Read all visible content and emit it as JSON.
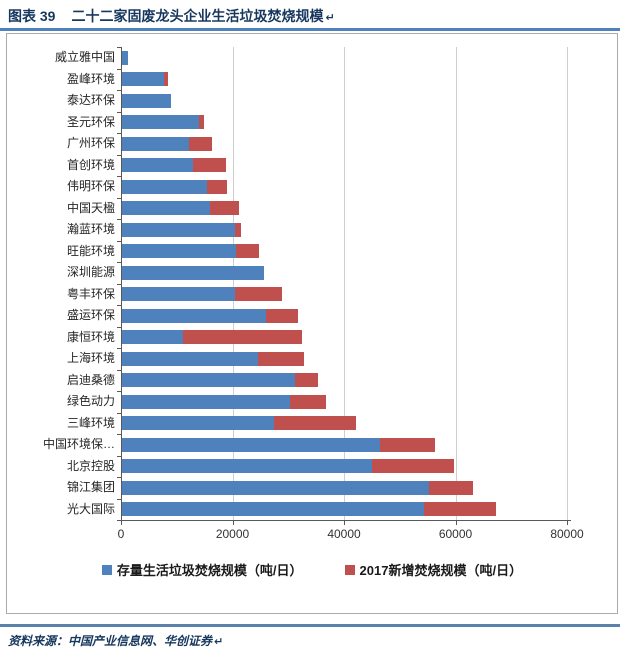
{
  "header": {
    "figure_label": "图表 39",
    "title": "二十二家固废龙头企业生活垃圾焚烧规模",
    "paragraph_mark": "↵"
  },
  "chart_data": {
    "type": "bar",
    "orientation": "horizontal",
    "stacked": true,
    "grid": "vertical-only",
    "legend_position": "bottom",
    "xlim": [
      0,
      80000
    ],
    "xticks": [
      0,
      20000,
      40000,
      60000,
      80000
    ],
    "xtick_labels": [
      "0",
      "20000",
      "40000",
      "60000",
      "80000"
    ],
    "categories": [
      "威立雅中国",
      "盈峰环境",
      "泰达环保",
      "圣元环保",
      "广州环保",
      "首创环境",
      "伟明环保",
      "中国天楹",
      "瀚蓝环境",
      "旺能环境",
      "深圳能源",
      "粤丰环保",
      "盛运环保",
      "康恒环境",
      "上海环境",
      "启迪桑德",
      "绿色动力",
      "三峰环境",
      "中国环境保…",
      "北京控股",
      "锦江集团",
      "光大国际"
    ],
    "series": [
      {
        "name": "存量生活垃圾焚烧规模（吨/日）",
        "color": "#4F81BD",
        "values": [
          1300,
          7800,
          8900,
          14000,
          12200,
          13000,
          15400,
          16000,
          20500,
          20700,
          25600,
          20400,
          26000,
          11200,
          24600,
          31200,
          30400,
          27400,
          46400,
          45000,
          55200,
          54400
        ]
      },
      {
        "name": "2017新增焚烧规模（吨/日）",
        "color": "#C0504D",
        "values": [
          0,
          700,
          0,
          900,
          4200,
          5800,
          3600,
          5200,
          1100,
          4000,
          0,
          8500,
          5700,
          21200,
          8300,
          4200,
          6300,
          14700,
          9900,
          14800,
          8000,
          12800
        ]
      }
    ]
  },
  "footer": {
    "source_text": "资料来源：中国产业信息网、华创证券",
    "paragraph_mark": "↵"
  },
  "colors": {
    "title_navy": "#17375E",
    "rule_blue": "#4F81BD",
    "bar_blue": "#4F81BD",
    "bar_red": "#C0504D",
    "chart_border": "#ABABAB",
    "gridline": "#CFCFCF",
    "axis": "#595959"
  }
}
